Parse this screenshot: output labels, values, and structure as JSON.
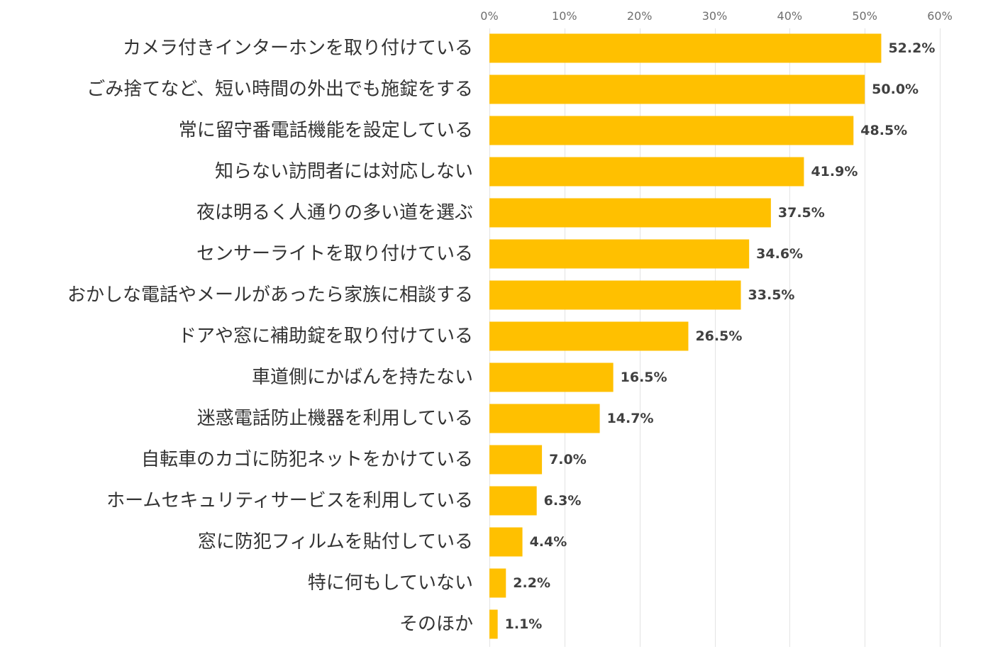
{
  "chart_data": {
    "type": "bar",
    "orientation": "horizontal",
    "categories": [
      "カメラ付きインターホンを取り付けている",
      "ごみ捨てなど、短い時間の外出でも施錠をする",
      "常に留守番電話機能を設定している",
      "知らない訪問者には対応しない",
      "夜は明るく人通りの多い道を選ぶ",
      "センサーライトを取り付けている",
      "おかしな電話やメールがあったら家族に相談する",
      "ドアや窓に補助錠を取り付けている",
      "車道側にかばんを持たない",
      "迷惑電話防止機器を利用している",
      "自転車のカゴに防犯ネットをかけている",
      "ホームセキュリティサービスを利用している",
      "窓に防犯フィルムを貼付している",
      "特に何もしていない",
      "そのほか"
    ],
    "values": [
      52.2,
      50.0,
      48.5,
      41.9,
      37.5,
      34.6,
      33.5,
      26.5,
      16.5,
      14.7,
      7.0,
      6.3,
      4.4,
      2.2,
      1.1
    ],
    "value_labels": [
      "52.2%",
      "50.0%",
      "48.5%",
      "41.9%",
      "37.5%",
      "34.6%",
      "33.5%",
      "26.5%",
      "16.5%",
      "14.7%",
      "7.0%",
      "6.3%",
      "4.4%",
      "2.2%",
      "1.1%"
    ],
    "xlim": [
      0,
      60
    ],
    "x_ticks": [
      0,
      10,
      20,
      30,
      40,
      50,
      60
    ],
    "x_tick_labels": [
      "0%",
      "10%",
      "20%",
      "30%",
      "40%",
      "50%",
      "60%"
    ],
    "x_axis_position": "top",
    "grid": true,
    "legend": false,
    "title": "",
    "xlabel": "",
    "ylabel": "",
    "colors": {
      "bar": "#FFC000",
      "grid": "#E3E3E3",
      "category_text": "#333333",
      "value_text": "#404040",
      "tick_text": "#6F6F6F"
    }
  }
}
